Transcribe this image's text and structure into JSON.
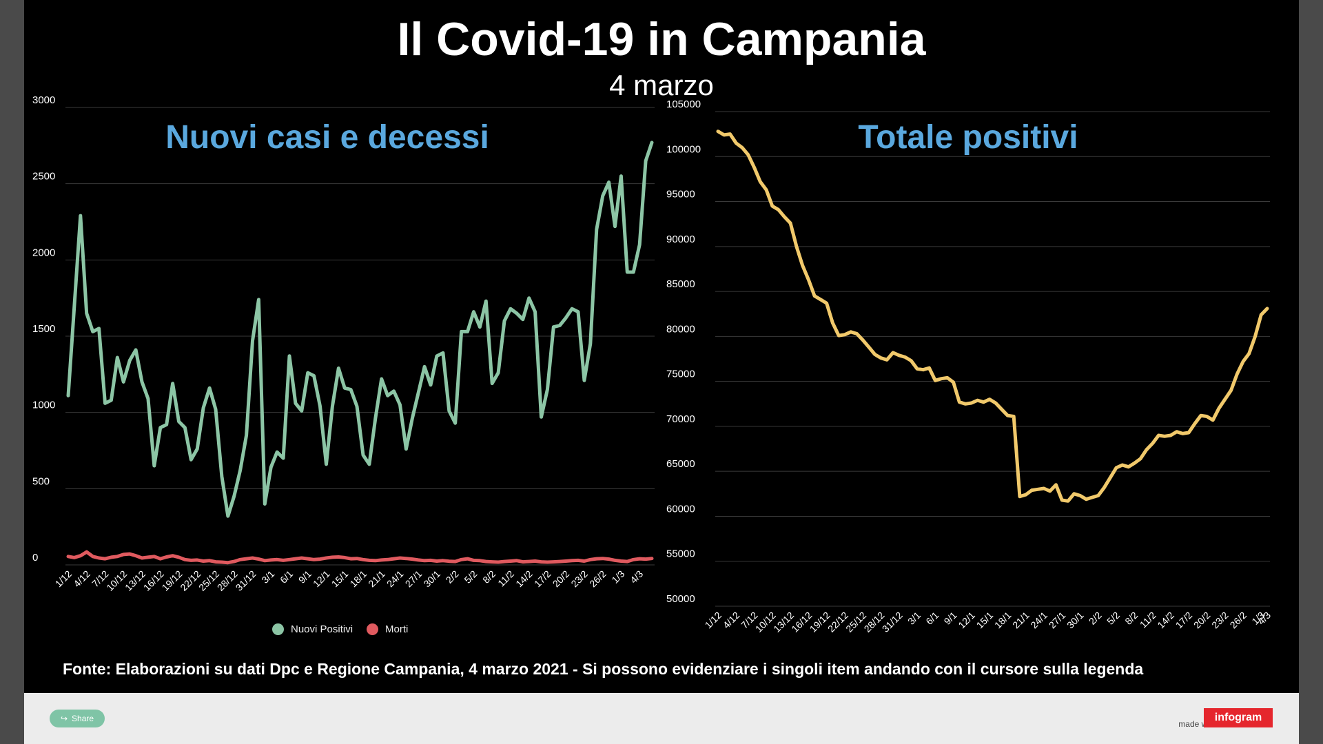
{
  "title": "Il Covid-19 in Campania",
  "subtitle": "4 marzo",
  "source_note": "Fonte: Elaborazioni su dati Dpc e Regione Campania, 4 marzo 2021 - Si possono evidenziare i singoli item andando con il cursore sulla legenda",
  "footer": {
    "share_label": "Share",
    "made_with": "made with",
    "brand": "infogram"
  },
  "colors": {
    "nuovi_positivi": "#8cc5a5",
    "morti": "#e05a5f",
    "totale_positivi": "#f1c96b",
    "panel_title": "#5aa8de"
  },
  "icons": {
    "share": "share-icon"
  },
  "chart_data": [
    {
      "type": "line",
      "title": "Nuovi casi e decessi",
      "ylim": [
        0,
        3000
      ],
      "yticks": [
        "0",
        "500",
        "1000",
        "1500",
        "2000",
        "2500",
        "3000"
      ],
      "x_tick_labels": [
        "1/12",
        "4/12",
        "7/12",
        "10/12",
        "13/12",
        "16/12",
        "19/12",
        "22/12",
        "25/12",
        "28/12",
        "31/12",
        "3/1",
        "6/1",
        "9/1",
        "12/1",
        "15/1",
        "18/1",
        "21/1",
        "24/1",
        "27/1",
        "30/1",
        "2/2",
        "5/2",
        "8/2",
        "11/2",
        "14/2",
        "17/2",
        "20/2",
        "23/2",
        "26/2",
        "1/3",
        "4/3"
      ],
      "legend": "bottom",
      "grid": true,
      "series": [
        {
          "name": "Nuovi Positivi",
          "values": [
            1110,
            1700,
            2290,
            1650,
            1530,
            1550,
            1060,
            1080,
            1360,
            1200,
            1340,
            1410,
            1200,
            1090,
            650,
            900,
            920,
            1190,
            940,
            900,
            690,
            760,
            1030,
            1160,
            1020,
            580,
            320,
            450,
            620,
            850,
            1470,
            1740,
            400,
            640,
            740,
            700,
            1370,
            1060,
            1010,
            1260,
            1240,
            1040,
            660,
            1040,
            1290,
            1160,
            1150,
            1040,
            720,
            660,
            960,
            1220,
            1110,
            1140,
            1050,
            760,
            960,
            1130,
            1300,
            1180,
            1370,
            1390,
            1010,
            930,
            1530,
            1530,
            1660,
            1560,
            1730,
            1190,
            1260,
            1600,
            1680,
            1650,
            1610,
            1750,
            1660,
            970,
            1150,
            1560,
            1570,
            1620,
            1680,
            1660,
            1210,
            1450,
            2200,
            2420,
            2510,
            2220,
            2550,
            1920,
            1920,
            2100,
            2650,
            2770
          ]
        },
        {
          "name": "Morti",
          "values": [
            55,
            48,
            60,
            85,
            55,
            45,
            40,
            50,
            55,
            68,
            72,
            60,
            45,
            50,
            55,
            40,
            52,
            60,
            50,
            35,
            30,
            32,
            25,
            28,
            20,
            18,
            15,
            22,
            35,
            40,
            45,
            38,
            28,
            32,
            35,
            30,
            35,
            40,
            45,
            40,
            35,
            38,
            45,
            50,
            52,
            48,
            40,
            42,
            35,
            30,
            28,
            32,
            35,
            40,
            45,
            42,
            38,
            32,
            28,
            30,
            25,
            28,
            24,
            22,
            35,
            40,
            30,
            28,
            22,
            20,
            18,
            22,
            25,
            28,
            20,
            22,
            25,
            20,
            18,
            20,
            22,
            25,
            28,
            30,
            25,
            35,
            40,
            42,
            38,
            30,
            25,
            22,
            35,
            40,
            38,
            42
          ]
        }
      ]
    },
    {
      "type": "line",
      "title": "Totale positivi",
      "ylim": [
        50000,
        105000
      ],
      "yticks": [
        "50000",
        "55000",
        "60000",
        "65000",
        "70000",
        "75000",
        "80000",
        "85000",
        "90000",
        "95000",
        "100000",
        "105000"
      ],
      "x_tick_labels": [
        "1/12",
        "4/12",
        "7/12",
        "10/12",
        "13/12",
        "16/12",
        "19/12",
        "22/12",
        "25/12",
        "28/12",
        "31/12",
        "3/1",
        "6/1",
        "9/1",
        "12/1",
        "15/1",
        "18/1",
        "21/1",
        "24/1",
        "27/1",
        "30/1",
        "2/2",
        "5/2",
        "8/2",
        "11/2",
        "14/2",
        "17/2",
        "20/2",
        "23/2",
        "26/2",
        "1/3",
        "4/3"
      ],
      "grid": true,
      "series": [
        {
          "name": "Totale positivi",
          "values": [
            102800,
            102400,
            102500,
            101500,
            101000,
            100200,
            98800,
            97200,
            96300,
            94500,
            94100,
            93300,
            92600,
            90000,
            87900,
            86300,
            84500,
            84100,
            83700,
            81500,
            80100,
            80200,
            80500,
            80300,
            79600,
            78800,
            78000,
            77600,
            77400,
            78200,
            77900,
            77700,
            77300,
            76400,
            76300,
            76500,
            75100,
            75300,
            75400,
            74900,
            72700,
            72500,
            72600,
            72900,
            72700,
            73000,
            72600,
            71900,
            71200,
            71100,
            62200,
            62400,
            62900,
            63000,
            63100,
            62800,
            63500,
            61800,
            61700,
            62500,
            62300,
            61900,
            62100,
            62300,
            63200,
            64300,
            65400,
            65700,
            65500,
            65900,
            66400,
            67400,
            68100,
            69000,
            68900,
            69000,
            69400,
            69200,
            69300,
            70300,
            71200,
            71100,
            70700,
            72000,
            73000,
            74000,
            75800,
            77200,
            78100,
            80000,
            82400,
            83100
          ]
        }
      ]
    }
  ]
}
